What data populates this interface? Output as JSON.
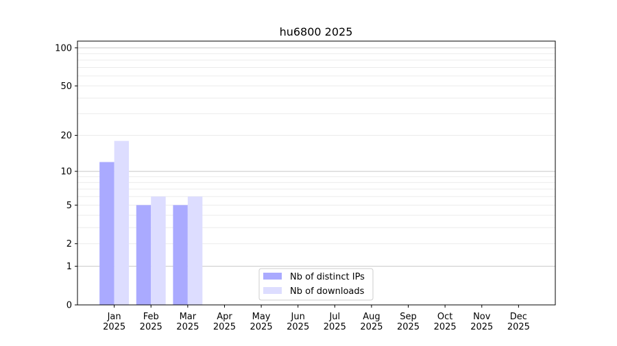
{
  "chart_data": {
    "type": "bar",
    "title": "hu6800 2025",
    "xlabel": "",
    "ylabel": "",
    "yscale": "log(1+y)",
    "ylim": [
      0,
      113
    ],
    "xlim": [
      -1,
      12
    ],
    "grid": true,
    "legend_placement": "bottom-center",
    "categories": [
      "Jan\n2025",
      "Feb\n2025",
      "Mar\n2025",
      "Apr\n2025",
      "May\n2025",
      "Jun\n2025",
      "Jul\n2025",
      "Aug\n2025",
      "Sep\n2025",
      "Oct\n2025",
      "Nov\n2025",
      "Dec\n2025"
    ],
    "yticks": [
      0,
      1,
      2,
      5,
      10,
      20,
      50,
      100
    ],
    "series": [
      {
        "name": "Nb of distinct IPs",
        "color": "#aaaaff",
        "values": [
          12,
          5,
          5,
          0,
          0,
          0,
          0,
          0,
          0,
          0,
          0,
          0
        ]
      },
      {
        "name": "Nb of downloads",
        "color": "#ddddff",
        "values": [
          18,
          6,
          6,
          0,
          0,
          0,
          0,
          0,
          0,
          0,
          0,
          0
        ]
      }
    ]
  }
}
